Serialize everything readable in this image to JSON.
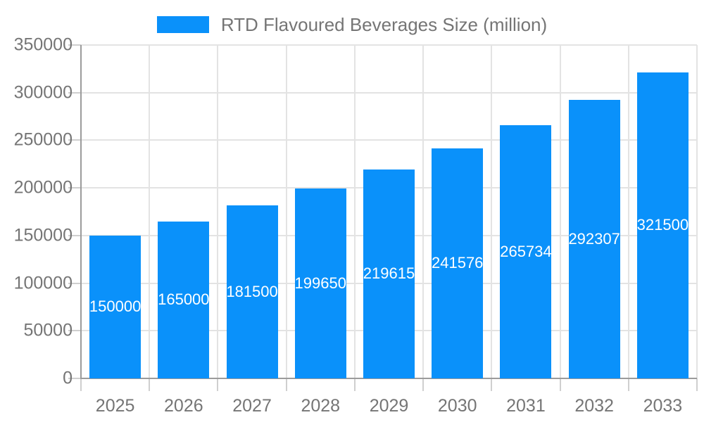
{
  "legend": {
    "label": "RTD Flavoured Beverages Size (million)",
    "swatch_color": "#0a91fa"
  },
  "chart_data": {
    "type": "bar",
    "title": "RTD Flavoured Beverages Size (million)",
    "series_name": "RTD Flavoured Beverages Size (million)",
    "categories": [
      "2025",
      "2026",
      "2027",
      "2028",
      "2029",
      "2030",
      "2031",
      "2032",
      "2033"
    ],
    "values": [
      150000,
      165000,
      181500,
      199650,
      219615,
      241576,
      265734,
      292307,
      321500
    ],
    "bar_labels": [
      "150000",
      "165000",
      "181500",
      "199650",
      "219615",
      "241576",
      "265734",
      "292307",
      "321500"
    ],
    "xlabel": "",
    "ylabel": "",
    "ylim": [
      0,
      350000
    ],
    "yticks": [
      0,
      50000,
      100000,
      150000,
      200000,
      250000,
      300000,
      350000
    ],
    "ytick_labels": [
      "0",
      "50000",
      "100000",
      "150000",
      "200000",
      "250000",
      "300000",
      "350000"
    ],
    "grid": true,
    "legend_position": "top",
    "bar_color": "#0a91fa",
    "bar_label_color": "#ffffff",
    "axis_text_color": "#757575",
    "axis_line_color": "#9b9b9b",
    "grid_line_color": "#e3e3e3",
    "tick_mark_color": "#cfcfcf",
    "background_color": "#ffffff"
  }
}
